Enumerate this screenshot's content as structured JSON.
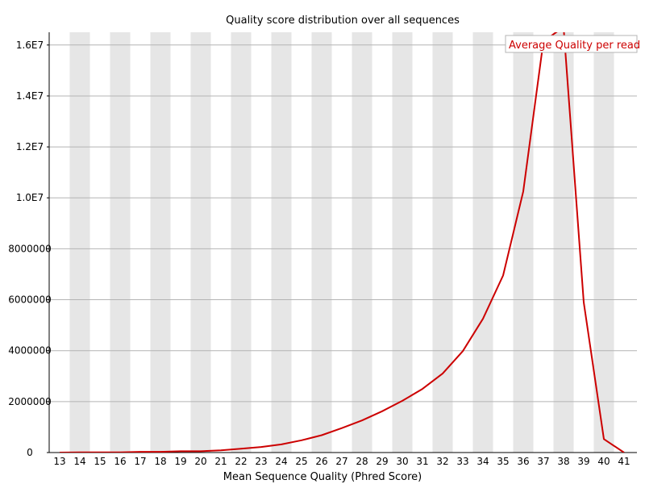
{
  "chart_data": {
    "type": "line",
    "title": "Quality score distribution over all sequences",
    "xlabel": "Mean Sequence Quality (Phred Score)",
    "ylabel": "",
    "x": [
      13,
      14,
      15,
      16,
      17,
      18,
      19,
      20,
      21,
      22,
      23,
      24,
      25,
      26,
      27,
      28,
      29,
      30,
      31,
      32,
      33,
      34,
      35,
      36,
      37,
      38,
      39,
      40,
      41
    ],
    "series": [
      {
        "name": "Average Quality per read",
        "color": "#cc0000",
        "values": [
          0,
          10000,
          5000,
          10000,
          30000,
          30000,
          50000,
          50000,
          90000,
          150000,
          220000,
          320000,
          480000,
          680000,
          960000,
          1260000,
          1620000,
          2030000,
          2500000,
          3100000,
          3980000,
          5250000,
          6950000,
          10250000,
          16150000,
          16700000,
          5900000,
          530000,
          0
        ]
      }
    ],
    "xlim": [
      13,
      41
    ],
    "ylim": [
      0,
      16500000
    ],
    "y_ticks": [
      0,
      2000000,
      4000000,
      6000000,
      8000000,
      10000000,
      12000000,
      14000000,
      16000000
    ],
    "y_tick_labels": [
      "0",
      "2000000",
      "4000000",
      "6000000",
      "8000000",
      "1.0E7",
      "1.2E7",
      "1.4E7",
      "1.6E7"
    ],
    "grid": "horizontal",
    "legend_position": "top-right"
  },
  "colors": {
    "band": "#e6e6e6",
    "grid": "#b4b4b4",
    "axis": "#000000",
    "line": "#cc0000"
  }
}
